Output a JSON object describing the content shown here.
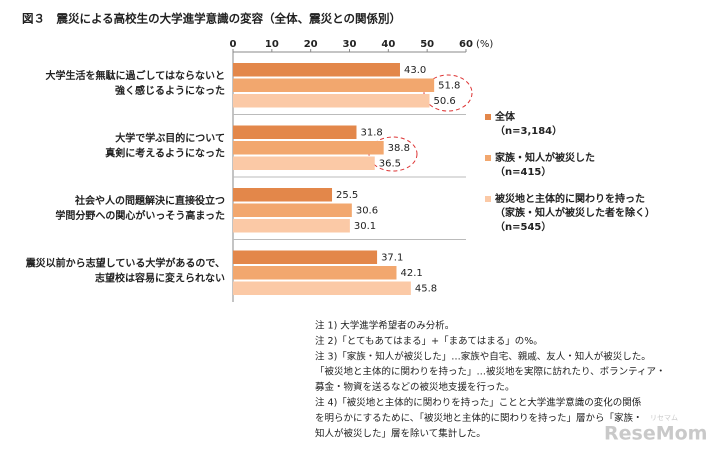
{
  "chart_data": {
    "type": "hbar",
    "title": "図３　震災による高校生の大学進学意識の変容（全体、震災との関係別）",
    "x_unit": "(%)",
    "xlim": [
      0,
      60
    ],
    "xticks": [
      0,
      10,
      20,
      30,
      40,
      50,
      60
    ],
    "categories": [
      [
        "大学生活を無駄に過ごしてはならないと",
        "強く感じるようになった"
      ],
      [
        "大学で学ぶ目的について",
        "真剣に考えるようになった"
      ],
      [
        "社会や人の問題解決に直接役立つ",
        "学問分野への関心がいっそう高まった"
      ],
      [
        "震災以前から志望している大学があるので、",
        "志望校は容易に変えられない"
      ]
    ],
    "series": [
      {
        "name": "全体",
        "notes": [
          "（n=3,184）"
        ],
        "color": "#e3874a",
        "values": [
          43.0,
          31.8,
          25.5,
          37.1
        ],
        "value_labels": [
          "43.0",
          "31.8",
          "25.5",
          "37.1"
        ]
      },
      {
        "name": "家族・知人が被災した",
        "notes": [
          "（n=415）"
        ],
        "color": "#f2a76e",
        "values": [
          51.8,
          38.8,
          30.6,
          42.1
        ],
        "value_labels": [
          "51.8",
          "38.8",
          "30.6",
          "42.1"
        ]
      },
      {
        "name": "被災地と主体的に関わりを持った",
        "notes": [
          "（家族・知人が被災した者を除く）",
          "（n=545）"
        ],
        "color": "#fbc9a6",
        "values": [
          50.6,
          36.5,
          30.1,
          45.8
        ],
        "value_labels": [
          "50.6",
          "36.5",
          "30.1",
          "45.8"
        ]
      }
    ],
    "notes": [
      "注 1) 大学進学希望者のみ分析。",
      "注 2)「とてもあてはまる」+「まあてはまる」の%。",
      "注 3)「家族・知人が被災した」…家族や自宅、親戚、友人・知人が被災した。",
      "「被災地と主体的に関わりを持った」…被災地を実際に訪れたり、ボランティア・",
      "募金・物資を送るなどの被災地支援を行った。",
      "注 4)「被災地と主体的に関わりを持った」ことと大学進学意識の変化の関係",
      "を明らかにするために、「被災地と主体的に関わりを持った」層から「家族・",
      "知人が被災した」層を除いて集計した。"
    ],
    "watermark": "ReseMom",
    "watermark_kana": "リセマム"
  }
}
